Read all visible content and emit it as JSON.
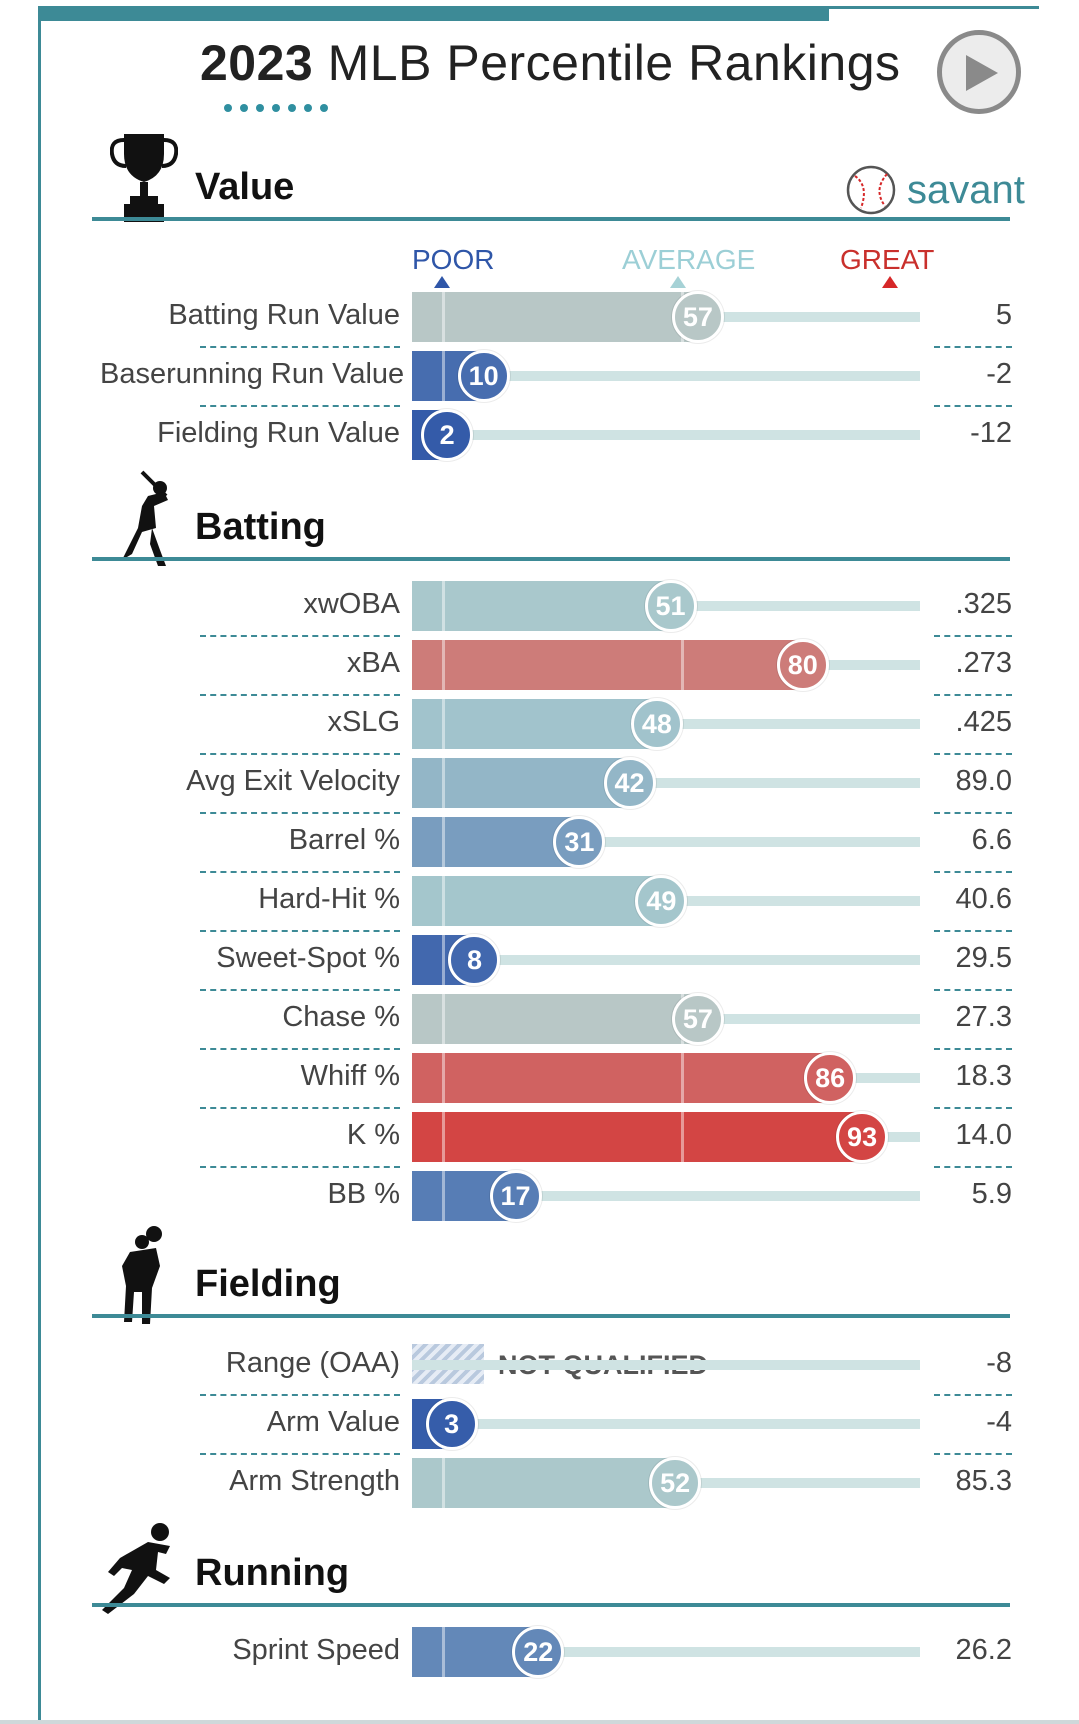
{
  "header": {
    "title_year": "2023",
    "title_rest": "MLB Percentile Rankings",
    "play_icon": "play-icon"
  },
  "brand": {
    "name": "savant",
    "icon": "baseball-icon",
    "color": "#3d8a96"
  },
  "scale": {
    "poor": "POOR",
    "average": "AVERAGE",
    "great": "GREAT"
  },
  "colors": {
    "accent": "#3d8a96",
    "poor": "#2f56a8",
    "average": "#a6c8cd",
    "great": "#d62728"
  },
  "sections": [
    {
      "title": "Value",
      "icon": "trophy-icon",
      "metrics": [
        {
          "label": "Batting Run Value",
          "percentile": 57,
          "value": "5"
        },
        {
          "label": "Baserunning Run Value",
          "percentile": 10,
          "value": "-2"
        },
        {
          "label": "Fielding Run Value",
          "percentile": 2,
          "value": "-12"
        }
      ]
    },
    {
      "title": "Batting",
      "icon": "batter-icon",
      "metrics": [
        {
          "label": "xwOBA",
          "percentile": 51,
          "value": ".325"
        },
        {
          "label": "xBA",
          "percentile": 80,
          "value": ".273"
        },
        {
          "label": "xSLG",
          "percentile": 48,
          "value": ".425"
        },
        {
          "label": "Avg Exit Velocity",
          "percentile": 42,
          "value": "89.0"
        },
        {
          "label": "Barrel %",
          "percentile": 31,
          "value": "6.6"
        },
        {
          "label": "Hard-Hit %",
          "percentile": 49,
          "value": "40.6"
        },
        {
          "label": "Sweet-Spot %",
          "percentile": 8,
          "value": "29.5"
        },
        {
          "label": "Chase %",
          "percentile": 57,
          "value": "27.3"
        },
        {
          "label": "Whiff %",
          "percentile": 86,
          "value": "18.3"
        },
        {
          "label": "K %",
          "percentile": 93,
          "value": "14.0"
        },
        {
          "label": "BB %",
          "percentile": 17,
          "value": "5.9"
        }
      ]
    },
    {
      "title": "Fielding",
      "icon": "fielder-icon",
      "metrics": [
        {
          "label": "Range (OAA)",
          "percentile": null,
          "status": "NOT QUALIFIED",
          "value": "-8"
        },
        {
          "label": "Arm Value",
          "percentile": 3,
          "value": "-4"
        },
        {
          "label": "Arm Strength",
          "percentile": 52,
          "value": "85.3"
        }
      ]
    },
    {
      "title": "Running",
      "icon": "runner-icon",
      "metrics": [
        {
          "label": "Sprint Speed",
          "percentile": 22,
          "value": "26.2"
        }
      ]
    }
  ]
}
